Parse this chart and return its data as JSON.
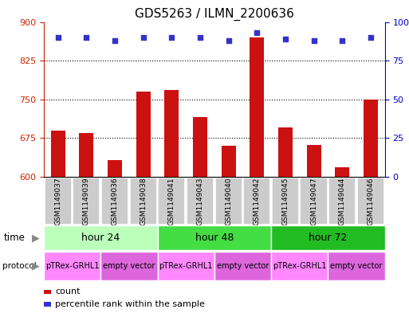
{
  "title": "GDS5263 / ILMN_2200636",
  "samples": [
    "GSM1149037",
    "GSM1149039",
    "GSM1149036",
    "GSM1149038",
    "GSM1149041",
    "GSM1149043",
    "GSM1149040",
    "GSM1149042",
    "GSM1149045",
    "GSM1149047",
    "GSM1149044",
    "GSM1149046"
  ],
  "counts": [
    690,
    685,
    632,
    765,
    768,
    715,
    660,
    870,
    695,
    662,
    618,
    750
  ],
  "percentiles": [
    90,
    90,
    88,
    90,
    90,
    90,
    88,
    93,
    89,
    88,
    88,
    90
  ],
  "ylim_left": [
    600,
    900
  ],
  "ylim_right": [
    0,
    100
  ],
  "yticks_left": [
    600,
    675,
    750,
    825,
    900
  ],
  "yticks_right": [
    0,
    25,
    50,
    75,
    100
  ],
  "bar_color": "#cc1111",
  "dot_color": "#3333cc",
  "grid_color": "#000000",
  "time_groups": [
    {
      "label": "hour 24",
      "start": 0,
      "end": 4,
      "color": "#bbffbb"
    },
    {
      "label": "hour 48",
      "start": 4,
      "end": 8,
      "color": "#44dd44"
    },
    {
      "label": "hour 72",
      "start": 8,
      "end": 12,
      "color": "#22bb22"
    }
  ],
  "protocol_groups": [
    {
      "label": "pTRex-GRHL1",
      "start": 0,
      "end": 2,
      "color": "#ff88ff"
    },
    {
      "label": "empty vector",
      "start": 2,
      "end": 4,
      "color": "#dd66dd"
    },
    {
      "label": "pTRex-GRHL1",
      "start": 4,
      "end": 6,
      "color": "#ff88ff"
    },
    {
      "label": "empty vector",
      "start": 6,
      "end": 8,
      "color": "#dd66dd"
    },
    {
      "label": "pTRex-GRHL1",
      "start": 8,
      "end": 10,
      "color": "#ff88ff"
    },
    {
      "label": "empty vector",
      "start": 10,
      "end": 12,
      "color": "#dd66dd"
    }
  ],
  "left_label_color": "#cc2200",
  "right_label_color": "#0000cc",
  "sample_box_color": "#cccccc",
  "bg_color": "#ffffff",
  "title_fontsize": 11,
  "tick_fontsize": 8,
  "sample_fontsize": 6.5,
  "time_fontsize": 9,
  "prot_fontsize": 7
}
